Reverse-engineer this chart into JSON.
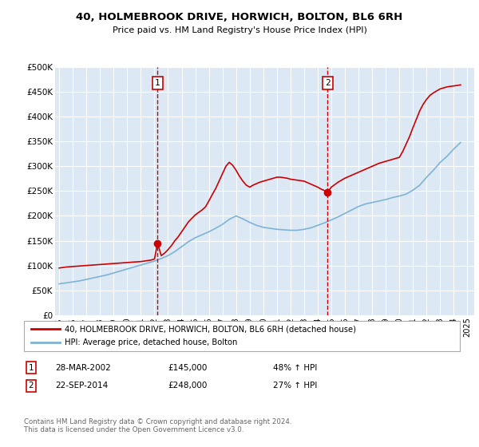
{
  "title": "40, HOLMEBROOK DRIVE, HORWICH, BOLTON, BL6 6RH",
  "subtitle": "Price paid vs. HM Land Registry's House Price Index (HPI)",
  "ylim": [
    0,
    500000
  ],
  "yticks": [
    0,
    50000,
    100000,
    150000,
    200000,
    250000,
    300000,
    350000,
    400000,
    450000,
    500000
  ],
  "xlim_start": 1994.7,
  "xlim_end": 2025.5,
  "bg_color": "#dce9f5",
  "red_line_color": "#cc0000",
  "blue_line_color": "#7fb3d3",
  "vline_color": "#cc0000",
  "sale1_x": 2002.23,
  "sale1_y": 145000,
  "sale2_x": 2014.73,
  "sale2_y": 248000,
  "legend_label1": "40, HOLMEBROOK DRIVE, HORWICH, BOLTON, BL6 6RH (detached house)",
  "legend_label2": "HPI: Average price, detached house, Bolton",
  "annotation1_num": "1",
  "annotation1_date": "28-MAR-2002",
  "annotation1_price": "£145,000",
  "annotation1_hpi": "48% ↑ HPI",
  "annotation2_num": "2",
  "annotation2_date": "22-SEP-2014",
  "annotation2_price": "£248,000",
  "annotation2_hpi": "27% ↑ HPI",
  "footer": "Contains HM Land Registry data © Crown copyright and database right 2024.\nThis data is licensed under the Open Government Licence v3.0.",
  "red_x": [
    1995.0,
    1995.25,
    1995.5,
    1995.75,
    1996.0,
    1996.25,
    1996.5,
    1996.75,
    1997.0,
    1997.25,
    1997.5,
    1997.75,
    1998.0,
    1998.25,
    1998.5,
    1998.75,
    1999.0,
    1999.25,
    1999.5,
    1999.75,
    2000.0,
    2000.25,
    2000.5,
    2000.75,
    2001.0,
    2001.25,
    2001.5,
    2001.75,
    2002.0,
    2002.23,
    2002.5,
    2002.75,
    2003.0,
    2003.25,
    2003.5,
    2003.75,
    2004.0,
    2004.25,
    2004.5,
    2004.75,
    2005.0,
    2005.25,
    2005.5,
    2005.75,
    2006.0,
    2006.25,
    2006.5,
    2006.75,
    2007.0,
    2007.25,
    2007.5,
    2007.75,
    2008.0,
    2008.25,
    2008.5,
    2008.75,
    2009.0,
    2009.25,
    2009.5,
    2009.75,
    2010.0,
    2010.25,
    2010.5,
    2010.75,
    2011.0,
    2011.25,
    2011.5,
    2011.75,
    2012.0,
    2012.25,
    2012.5,
    2012.75,
    2013.0,
    2013.25,
    2013.5,
    2013.75,
    2014.0,
    2014.25,
    2014.5,
    2014.73,
    2015.0,
    2015.25,
    2015.5,
    2015.75,
    2016.0,
    2016.25,
    2016.5,
    2016.75,
    2017.0,
    2017.25,
    2017.5,
    2017.75,
    2018.0,
    2018.25,
    2018.5,
    2018.75,
    2019.0,
    2019.25,
    2019.5,
    2019.75,
    2020.0,
    2020.25,
    2020.5,
    2020.75,
    2021.0,
    2021.25,
    2021.5,
    2021.75,
    2022.0,
    2022.25,
    2022.5,
    2022.75,
    2023.0,
    2023.25,
    2023.5,
    2023.75,
    2024.0,
    2024.25,
    2024.5
  ],
  "red_y": [
    95000,
    96000,
    97000,
    97500,
    98000,
    98500,
    99000,
    99500,
    100000,
    100500,
    101000,
    101500,
    102000,
    102500,
    103000,
    103500,
    104000,
    104500,
    105000,
    105500,
    106000,
    106500,
    107000,
    107500,
    108000,
    109000,
    110000,
    111000,
    113000,
    145000,
    120000,
    125000,
    132000,
    140000,
    150000,
    158000,
    168000,
    178000,
    188000,
    195000,
    202000,
    207000,
    212000,
    218000,
    230000,
    243000,
    255000,
    270000,
    285000,
    300000,
    308000,
    302000,
    292000,
    280000,
    270000,
    262000,
    258000,
    262000,
    265000,
    268000,
    270000,
    272000,
    274000,
    276000,
    278000,
    278000,
    277000,
    276000,
    274000,
    273000,
    272000,
    271000,
    270000,
    267000,
    264000,
    261000,
    258000,
    254000,
    251000,
    248000,
    258000,
    263000,
    268000,
    272000,
    276000,
    279000,
    282000,
    285000,
    288000,
    291000,
    294000,
    297000,
    300000,
    303000,
    306000,
    308000,
    310000,
    312000,
    314000,
    316000,
    318000,
    330000,
    345000,
    360000,
    378000,
    395000,
    412000,
    425000,
    435000,
    443000,
    448000,
    452000,
    456000,
    458000,
    460000,
    461000,
    462000,
    463000,
    464000
  ],
  "blue_x": [
    1995.0,
    1995.25,
    1995.5,
    1995.75,
    1996.0,
    1996.25,
    1996.5,
    1996.75,
    1997.0,
    1997.25,
    1997.5,
    1997.75,
    1998.0,
    1998.25,
    1998.5,
    1998.75,
    1999.0,
    1999.25,
    1999.5,
    1999.75,
    2000.0,
    2000.25,
    2000.5,
    2000.75,
    2001.0,
    2001.25,
    2001.5,
    2001.75,
    2002.0,
    2002.5,
    2003.0,
    2003.5,
    2004.0,
    2004.5,
    2005.0,
    2005.5,
    2006.0,
    2006.5,
    2007.0,
    2007.5,
    2008.0,
    2008.5,
    2009.0,
    2009.5,
    2010.0,
    2010.5,
    2011.0,
    2011.5,
    2012.0,
    2012.5,
    2013.0,
    2013.5,
    2014.0,
    2014.5,
    2015.0,
    2015.5,
    2016.0,
    2016.5,
    2017.0,
    2017.5,
    2018.0,
    2018.5,
    2019.0,
    2019.5,
    2020.0,
    2020.5,
    2021.0,
    2021.5,
    2022.0,
    2022.5,
    2023.0,
    2023.5,
    2024.0,
    2024.5
  ],
  "blue_y": [
    63000,
    64000,
    65000,
    66000,
    67000,
    68000,
    69000,
    70500,
    72000,
    73500,
    75000,
    76500,
    78000,
    79500,
    81000,
    83000,
    85000,
    87000,
    89000,
    91000,
    93000,
    95000,
    97000,
    99000,
    101000,
    103000,
    105000,
    107000,
    109000,
    114000,
    120000,
    128000,
    138000,
    148000,
    156000,
    162000,
    168000,
    175000,
    183000,
    193000,
    200000,
    194000,
    187000,
    181000,
    177000,
    175000,
    173000,
    172000,
    171000,
    171000,
    173000,
    176000,
    181000,
    186000,
    192000,
    198000,
    205000,
    212000,
    219000,
    224000,
    227000,
    230000,
    233000,
    237000,
    240000,
    244000,
    252000,
    262000,
    278000,
    292000,
    308000,
    320000,
    335000,
    348000
  ]
}
